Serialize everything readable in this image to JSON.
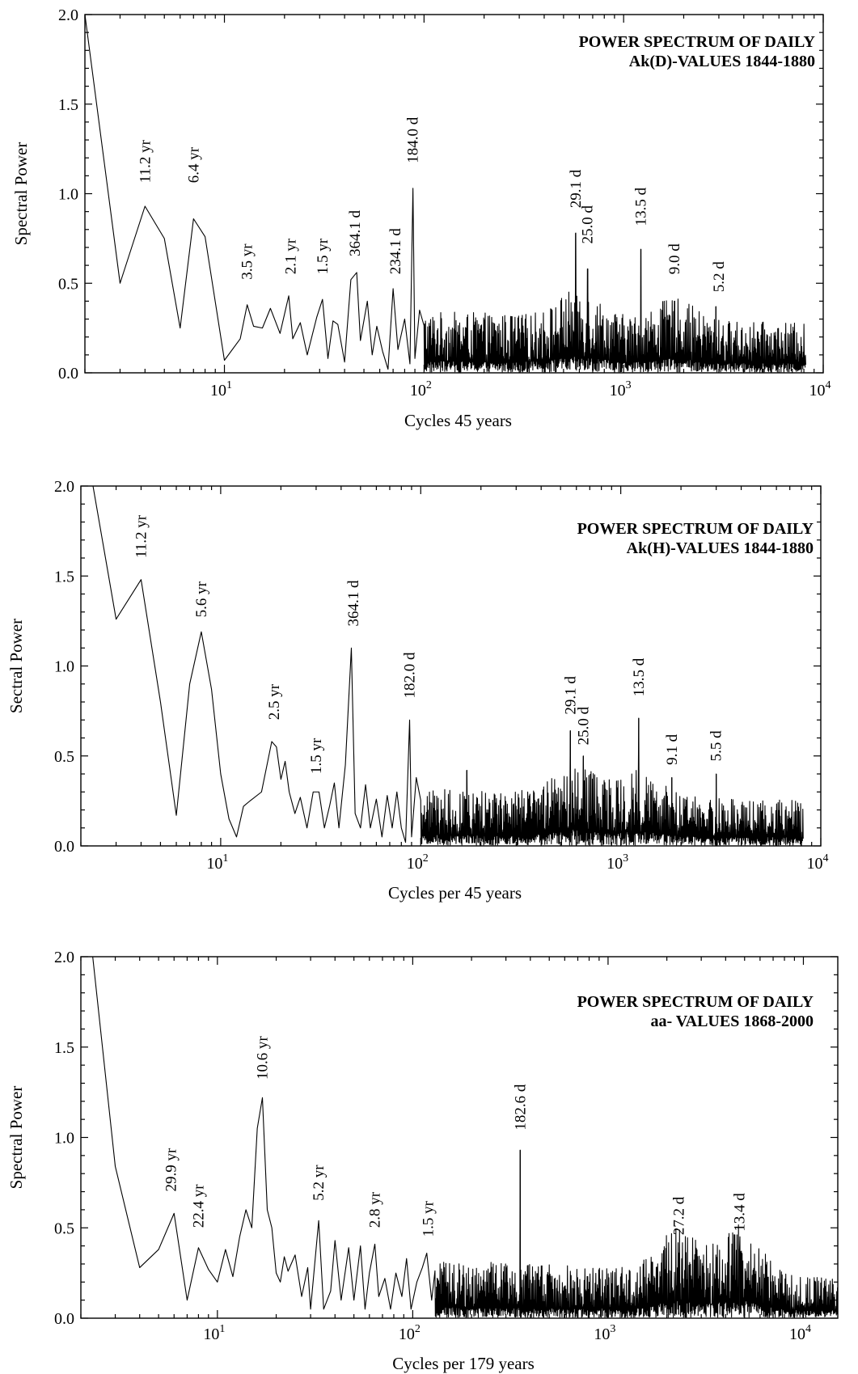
{
  "chart_data": [
    {
      "type": "line",
      "title": [
        "POWER SPECTRUM OF DAILY",
        "Ak(D)-VALUES 1844-1880"
      ],
      "xlabel": "Cycles 45 years",
      "ylabel": "Spectral Power",
      "xscale": "log",
      "xlim": [
        2,
        10000
      ],
      "ylim": [
        0,
        2.0
      ],
      "yticks": [
        "0.0",
        "0.5",
        "1.0",
        "1.5",
        "2.0"
      ],
      "xticks": [
        {
          "base": "10",
          "exp": "1"
        },
        {
          "base": "10",
          "exp": "2"
        },
        {
          "base": "10",
          "exp": "3"
        },
        {
          "base": "10",
          "exp": "4"
        }
      ],
      "legend": "top-right",
      "low_freq": [
        [
          2,
          2.0
        ],
        [
          3,
          0.5
        ],
        [
          4,
          0.93
        ],
        [
          5,
          0.75
        ],
        [
          6,
          0.25
        ],
        [
          7,
          0.86
        ],
        [
          8,
          0.76
        ],
        [
          10,
          0.07
        ],
        [
          12,
          0.19
        ],
        [
          13,
          0.38
        ],
        [
          14,
          0.26
        ],
        [
          15.5,
          0.25
        ],
        [
          17,
          0.36
        ],
        [
          19,
          0.22
        ],
        [
          21,
          0.43
        ],
        [
          22,
          0.19
        ],
        [
          24,
          0.28
        ],
        [
          26,
          0.1
        ],
        [
          29,
          0.31
        ],
        [
          31,
          0.41
        ],
        [
          33,
          0.08
        ],
        [
          35,
          0.29
        ],
        [
          37,
          0.27
        ],
        [
          40,
          0.06
        ],
        [
          43,
          0.52
        ],
        [
          46,
          0.56
        ],
        [
          48,
          0.18
        ],
        [
          52,
          0.4
        ],
        [
          55,
          0.1
        ],
        [
          58,
          0.26
        ],
        [
          62,
          0.12
        ],
        [
          66,
          0.02
        ],
        [
          70,
          0.47
        ],
        [
          74,
          0.13
        ],
        [
          80,
          0.3
        ],
        [
          85,
          0.05
        ],
        [
          88,
          1.03
        ],
        [
          90,
          0.08
        ],
        [
          95,
          0.35
        ]
      ],
      "peaks": [
        [
          575,
          0.78
        ],
        [
          660,
          0.58
        ],
        [
          1220,
          0.69
        ],
        [
          1800,
          0.4
        ],
        [
          2900,
          0.37
        ]
      ],
      "noise": {
        "f_start": 100,
        "f_end": 8200,
        "base_low": 0.15,
        "base_high": 0.12,
        "bumps": [
          [
            600,
            0.07
          ],
          [
            1800,
            0.05
          ]
        ]
      },
      "annotations": [
        {
          "label": "11.2 yr",
          "x": 4.0,
          "y": 1.06
        },
        {
          "label": "6.4 yr",
          "x": 7.0,
          "y": 1.06
        },
        {
          "label": "3.5 yr",
          "x": 13.0,
          "y": 0.52
        },
        {
          "label": "2.1 yr",
          "x": 21.5,
          "y": 0.55
        },
        {
          "label": "1.5 yr",
          "x": 31.0,
          "y": 0.55
        },
        {
          "label": "364.1 d",
          "x": 45.0,
          "y": 0.65
        },
        {
          "label": "234.1 d",
          "x": 72.0,
          "y": 0.55
        },
        {
          "label": "184.0 d",
          "x": 88.0,
          "y": 1.17
        },
        {
          "label": "29.1 d",
          "x": 575,
          "y": 0.92
        },
        {
          "label": "25.0 d",
          "x": 660,
          "y": 0.72
        },
        {
          "label": "13.5 d",
          "x": 1220,
          "y": 0.82
        },
        {
          "label": "9.0 d",
          "x": 1800,
          "y": 0.55
        },
        {
          "label": "5.2 d",
          "x": 3000,
          "y": 0.45
        }
      ]
    },
    {
      "type": "line",
      "title": [
        "POWER SPECTRUM OF DAILY",
        "Ak(H)-VALUES 1844-1880"
      ],
      "xlabel": "Cycles per 45 years",
      "ylabel": "Sectral Power",
      "xscale": "log",
      "xlim": [
        2,
        10000
      ],
      "ylim": [
        0,
        2.0
      ],
      "yticks": [
        "0.0",
        "0.5",
        "1.0",
        "1.5",
        "2.0"
      ],
      "xticks": [
        {
          "base": "10",
          "exp": "1"
        },
        {
          "base": "10",
          "exp": "2"
        },
        {
          "base": "10",
          "exp": "3"
        },
        {
          "base": "10",
          "exp": "4"
        }
      ],
      "legend": "top-right",
      "low_freq": [
        [
          2.3,
          2.0
        ],
        [
          3,
          1.26
        ],
        [
          4,
          1.48
        ],
        [
          5,
          0.8
        ],
        [
          6,
          0.17
        ],
        [
          7,
          0.9
        ],
        [
          8,
          1.19
        ],
        [
          9,
          0.87
        ],
        [
          10,
          0.4
        ],
        [
          11,
          0.15
        ],
        [
          12,
          0.05
        ],
        [
          13,
          0.22
        ],
        [
          14,
          0.25
        ],
        [
          16,
          0.3
        ],
        [
          18,
          0.58
        ],
        [
          19,
          0.55
        ],
        [
          20,
          0.37
        ],
        [
          21,
          0.47
        ],
        [
          22,
          0.3
        ],
        [
          23.5,
          0.18
        ],
        [
          25,
          0.27
        ],
        [
          27,
          0.1
        ],
        [
          29,
          0.3
        ],
        [
          31,
          0.3
        ],
        [
          33,
          0.1
        ],
        [
          35,
          0.22
        ],
        [
          37,
          0.35
        ],
        [
          39,
          0.1
        ],
        [
          42,
          0.45
        ],
        [
          45,
          1.1
        ],
        [
          47,
          0.18
        ],
        [
          50,
          0.1
        ],
        [
          53,
          0.34
        ],
        [
          56,
          0.1
        ],
        [
          60,
          0.26
        ],
        [
          64,
          0.05
        ],
        [
          68,
          0.28
        ],
        [
          72,
          0.1
        ],
        [
          76,
          0.3
        ],
        [
          80,
          0.1
        ],
        [
          84,
          0.02
        ],
        [
          88,
          0.7
        ],
        [
          90,
          0.05
        ],
        [
          95,
          0.38
        ]
      ],
      "peaks": [
        [
          170,
          0.42
        ],
        [
          560,
          0.64
        ],
        [
          650,
          0.5
        ],
        [
          1230,
          0.71
        ],
        [
          1800,
          0.38
        ],
        [
          3000,
          0.4
        ]
      ],
      "noise": {
        "f_start": 100,
        "f_end": 8200,
        "base_low": 0.14,
        "base_high": 0.11,
        "bumps": [
          [
            600,
            0.08
          ],
          [
            1230,
            0.06
          ]
        ]
      },
      "annotations": [
        {
          "label": "11.2 yr",
          "x": 4.0,
          "y": 1.6
        },
        {
          "label": "5.6 yr",
          "x": 8.0,
          "y": 1.27
        },
        {
          "label": "2.5 yr",
          "x": 18.5,
          "y": 0.7
        },
        {
          "label": "1.5 yr",
          "x": 30.0,
          "y": 0.4
        },
        {
          "label": "364.1 d",
          "x": 46.0,
          "y": 1.22
        },
        {
          "label": "182.0 d",
          "x": 88.0,
          "y": 0.82
        },
        {
          "label": "29.1 d",
          "x": 560,
          "y": 0.73
        },
        {
          "label": "25.0 d",
          "x": 650,
          "y": 0.56
        },
        {
          "label": "13.5 d",
          "x": 1230,
          "y": 0.83
        },
        {
          "label": "9.1 d",
          "x": 1800,
          "y": 0.45
        },
        {
          "label": "5.5 d",
          "x": 3000,
          "y": 0.47
        }
      ]
    },
    {
      "type": "line",
      "title": [
        "POWER SPECTRUM OF DAILY",
        "aa- VALUES 1868-2000"
      ],
      "xlabel": "Cycles per 179 years",
      "ylabel": "Spectral Power",
      "xscale": "log",
      "xlim": [
        2,
        15000
      ],
      "ylim": [
        0,
        2.0
      ],
      "yticks": [
        "0.0",
        "0.5",
        "1.0",
        "1.5",
        "2.0"
      ],
      "xticks": [
        {
          "base": "10",
          "exp": "1"
        },
        {
          "base": "10",
          "exp": "2"
        },
        {
          "base": "10",
          "exp": "3"
        },
        {
          "base": "10",
          "exp": "4"
        }
      ],
      "legend": "top-right",
      "low_freq": [
        [
          2.3,
          2.0
        ],
        [
          3,
          0.84
        ],
        [
          4,
          0.28
        ],
        [
          5,
          0.38
        ],
        [
          6,
          0.58
        ],
        [
          7,
          0.1
        ],
        [
          8,
          0.39
        ],
        [
          9,
          0.27
        ],
        [
          10,
          0.2
        ],
        [
          11,
          0.38
        ],
        [
          12,
          0.23
        ],
        [
          13,
          0.45
        ],
        [
          14,
          0.6
        ],
        [
          15,
          0.5
        ],
        [
          16,
          1.05
        ],
        [
          17,
          1.22
        ],
        [
          18,
          0.6
        ],
        [
          19,
          0.5
        ],
        [
          20,
          0.25
        ],
        [
          21,
          0.2
        ],
        [
          22,
          0.34
        ],
        [
          23,
          0.26
        ],
        [
          25,
          0.35
        ],
        [
          27,
          0.12
        ],
        [
          29,
          0.28
        ],
        [
          30,
          0.05
        ],
        [
          33,
          0.54
        ],
        [
          35,
          0.05
        ],
        [
          38,
          0.15
        ],
        [
          40,
          0.43
        ],
        [
          43,
          0.1
        ],
        [
          47,
          0.39
        ],
        [
          50,
          0.1
        ],
        [
          54,
          0.4
        ],
        [
          57,
          0.05
        ],
        [
          60,
          0.25
        ],
        [
          64,
          0.41
        ],
        [
          67,
          0.12
        ],
        [
          72,
          0.22
        ],
        [
          77,
          0.05
        ],
        [
          82,
          0.25
        ],
        [
          88,
          0.12
        ],
        [
          93,
          0.33
        ],
        [
          98,
          0.05
        ],
        [
          105,
          0.2
        ],
        [
          112,
          0.28
        ],
        [
          118,
          0.36
        ],
        [
          125,
          0.1
        ]
      ],
      "peaks": [
        [
          355,
          0.93
        ],
        [
          2300,
          0.36
        ],
        [
          4700,
          0.38
        ]
      ],
      "noise": {
        "f_start": 130,
        "f_end": 15000,
        "base_low": 0.14,
        "base_high": 0.1,
        "bumps": [
          [
            2300,
            0.1
          ],
          [
            4700,
            0.12
          ]
        ]
      },
      "annotations": [
        {
          "label": "29.9 yr",
          "x": 5.8,
          "y": 0.7
        },
        {
          "label": "22.4 yr",
          "x": 8.0,
          "y": 0.5
        },
        {
          "label": "10.6 yr",
          "x": 17.0,
          "y": 1.32
        },
        {
          "label": "5.2 yr",
          "x": 33.0,
          "y": 0.65
        },
        {
          "label": "2.8 yr",
          "x": 64.0,
          "y": 0.5
        },
        {
          "label": "1.5 yr",
          "x": 120,
          "y": 0.45
        },
        {
          "label": "182.6 d",
          "x": 355,
          "y": 1.04
        },
        {
          "label": "27.2 d",
          "x": 2300,
          "y": 0.46
        },
        {
          "label": "13.4 d",
          "x": 4700,
          "y": 0.48
        }
      ]
    }
  ]
}
